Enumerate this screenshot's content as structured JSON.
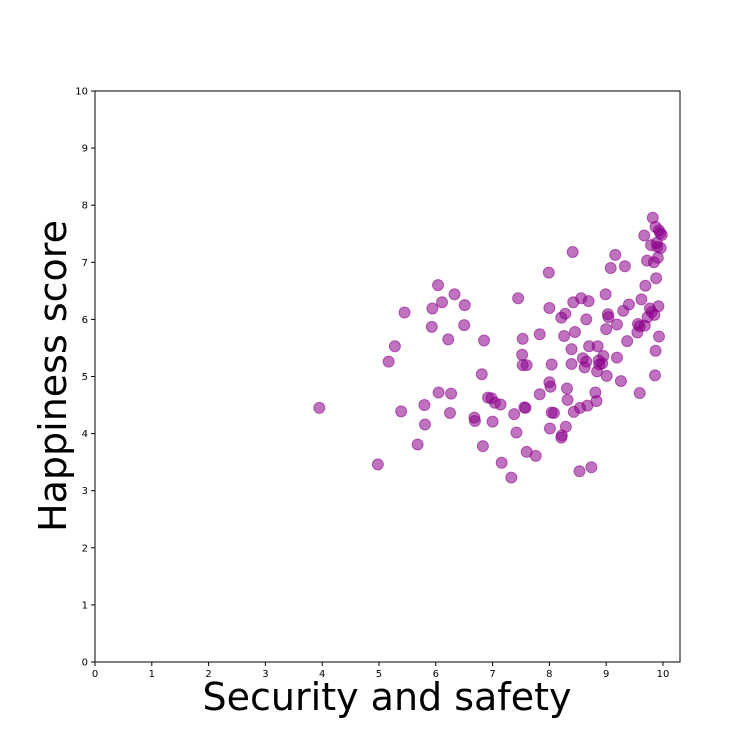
{
  "chart_data": {
    "type": "scatter",
    "title": "",
    "xlabel": "Security and safety",
    "ylabel": "Happiness score",
    "xlim": [
      0,
      10.3
    ],
    "ylim": [
      0,
      10
    ],
    "x_ticks": [
      "0",
      "1",
      "2",
      "3",
      "4",
      "5",
      "6",
      "7",
      "8",
      "9",
      "10"
    ],
    "y_ticks": [
      "0",
      "1",
      "2",
      "3",
      "4",
      "5",
      "6",
      "7",
      "8",
      "9",
      "10"
    ],
    "grid": false,
    "legend": "none",
    "marker_color": "#8b008b",
    "marker_opacity": 0.55,
    "points": [
      [
        3.95,
        4.45
      ],
      [
        4.98,
        3.46
      ],
      [
        5.17,
        5.26
      ],
      [
        5.28,
        5.53
      ],
      [
        5.39,
        4.39
      ],
      [
        5.45,
        6.12
      ],
      [
        5.68,
        3.81
      ],
      [
        5.8,
        4.5
      ],
      [
        5.81,
        4.16
      ],
      [
        5.93,
        5.87
      ],
      [
        5.94,
        6.19
      ],
      [
        6.04,
        6.6
      ],
      [
        6.05,
        4.72
      ],
      [
        6.11,
        6.3
      ],
      [
        6.22,
        5.65
      ],
      [
        6.25,
        4.36
      ],
      [
        6.27,
        4.7
      ],
      [
        6.33,
        6.44
      ],
      [
        6.5,
        5.9
      ],
      [
        6.51,
        6.25
      ],
      [
        6.68,
        4.28
      ],
      [
        6.69,
        4.22
      ],
      [
        6.81,
        5.04
      ],
      [
        6.83,
        3.78
      ],
      [
        6.85,
        5.63
      ],
      [
        6.92,
        4.63
      ],
      [
        6.98,
        4.62
      ],
      [
        7.0,
        4.21
      ],
      [
        7.04,
        4.54
      ],
      [
        7.14,
        4.51
      ],
      [
        7.16,
        3.49
      ],
      [
        7.33,
        3.23
      ],
      [
        7.38,
        4.34
      ],
      [
        7.42,
        4.02
      ],
      [
        7.45,
        6.37
      ],
      [
        7.52,
        5.38
      ],
      [
        7.53,
        5.66
      ],
      [
        7.53,
        5.2
      ],
      [
        7.56,
        4.46
      ],
      [
        7.58,
        4.45
      ],
      [
        7.6,
        5.2
      ],
      [
        7.6,
        3.68
      ],
      [
        7.76,
        3.61
      ],
      [
        7.83,
        5.74
      ],
      [
        7.83,
        4.69
      ],
      [
        7.99,
        6.82
      ],
      [
        8.0,
        6.2
      ],
      [
        8.0,
        4.9
      ],
      [
        8.01,
        4.09
      ],
      [
        8.02,
        4.82
      ],
      [
        8.04,
        5.21
      ],
      [
        8.04,
        4.37
      ],
      [
        8.08,
        4.36
      ],
      [
        8.21,
        6.03
      ],
      [
        8.21,
        3.93
      ],
      [
        8.22,
        3.97
      ],
      [
        8.26,
        5.71
      ],
      [
        8.28,
        6.1
      ],
      [
        8.29,
        4.12
      ],
      [
        8.31,
        4.79
      ],
      [
        8.32,
        4.59
      ],
      [
        8.39,
        5.48
      ],
      [
        8.39,
        5.22
      ],
      [
        8.41,
        7.18
      ],
      [
        8.42,
        6.3
      ],
      [
        8.43,
        4.38
      ],
      [
        8.45,
        5.78
      ],
      [
        8.53,
        3.34
      ],
      [
        8.54,
        4.45
      ],
      [
        8.56,
        6.37
      ],
      [
        8.59,
        5.32
      ],
      [
        8.62,
        5.16
      ],
      [
        8.65,
        6.0
      ],
      [
        8.65,
        5.26
      ],
      [
        8.67,
        4.49
      ],
      [
        8.69,
        6.32
      ],
      [
        8.7,
        5.53
      ],
      [
        8.74,
        3.41
      ],
      [
        8.81,
        4.72
      ],
      [
        8.83,
        4.57
      ],
      [
        8.84,
        5.09
      ],
      [
        8.85,
        5.53
      ],
      [
        8.87,
        5.28
      ],
      [
        8.88,
        5.21
      ],
      [
        8.93,
        5.23
      ],
      [
        8.95,
        5.36
      ],
      [
        8.99,
        6.44
      ],
      [
        9.0,
        5.83
      ],
      [
        9.01,
        5.01
      ],
      [
        9.03,
        6.09
      ],
      [
        9.04,
        6.04
      ],
      [
        9.08,
        6.9
      ],
      [
        9.16,
        7.13
      ],
      [
        9.19,
        5.91
      ],
      [
        9.19,
        5.33
      ],
      [
        9.26,
        4.92
      ],
      [
        9.3,
        6.15
      ],
      [
        9.33,
        6.93
      ],
      [
        9.37,
        5.62
      ],
      [
        9.4,
        6.26
      ],
      [
        9.55,
        5.77
      ],
      [
        9.56,
        5.92
      ],
      [
        9.59,
        5.88
      ],
      [
        9.59,
        4.71
      ],
      [
        9.62,
        6.35
      ],
      [
        9.67,
        7.47
      ],
      [
        9.68,
        5.89
      ],
      [
        9.69,
        6.59
      ],
      [
        9.72,
        7.03
      ],
      [
        9.73,
        6.04
      ],
      [
        9.77,
        6.19
      ],
      [
        9.79,
        7.3
      ],
      [
        9.8,
        6.13
      ],
      [
        9.82,
        7.78
      ],
      [
        9.84,
        7.0
      ],
      [
        9.85,
        6.08
      ],
      [
        9.86,
        5.02
      ],
      [
        9.87,
        7.62
      ],
      [
        9.87,
        5.45
      ],
      [
        9.88,
        6.72
      ],
      [
        9.89,
        7.34
      ],
      [
        9.9,
        7.27
      ],
      [
        9.91,
        7.08
      ],
      [
        9.92,
        6.23
      ],
      [
        9.93,
        7.56
      ],
      [
        9.93,
        5.7
      ],
      [
        9.95,
        7.51
      ],
      [
        9.96,
        7.25
      ],
      [
        9.98,
        7.48
      ]
    ]
  }
}
